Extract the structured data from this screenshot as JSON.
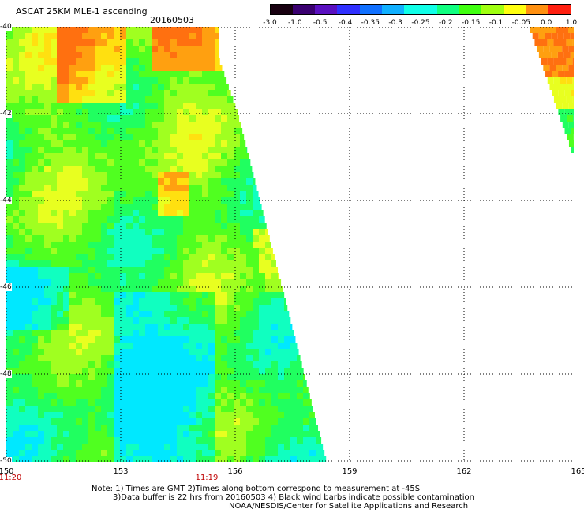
{
  "header": {
    "title": "ASCAT 25KM MLE-1 ascending",
    "date": "20160503"
  },
  "colorbar": {
    "labels": [
      "-3.0",
      "-1.0",
      "-0.5",
      "-0.4",
      "-0.35",
      "-0.3",
      "-0.25",
      "-0.2",
      "-0.15",
      "-0.1",
      "-0.05",
      "0.0",
      "1.0"
    ],
    "colors": [
      "#180010",
      "#3a0070",
      "#5a10c0",
      "#3030ff",
      "#1070ff",
      "#10b0ff",
      "#10ffe8",
      "#10ff80",
      "#40ff10",
      "#a0ff10",
      "#ffff10",
      "#ff9010",
      "#ff2010"
    ]
  },
  "map": {
    "lat_labels": [
      "-40",
      "-42",
      "-44",
      "-46",
      "-48",
      "-50"
    ],
    "lon_labels": [
      "150",
      "153",
      "156",
      "159",
      "162",
      "165"
    ],
    "time_labels": [
      "11:20",
      "11:19"
    ]
  },
  "notes": {
    "line1": "Note: 1) Times are GMT 2)Times along bottom correspond to measurement at -45S",
    "line2": "3)Data buffer is 22 hrs from 20160503 4) Black wind barbs indicate possible contamination",
    "line3": "NOAA/NESDIS/Center for Satellite Applications and Research"
  }
}
